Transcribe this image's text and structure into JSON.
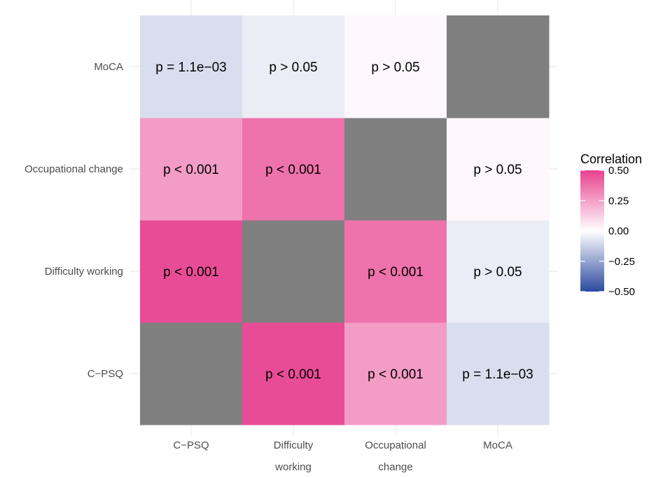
{
  "chart_data": {
    "type": "heatmap",
    "x_categories": [
      [
        "C−PSQ"
      ],
      [
        "Difficulty",
        "working"
      ],
      [
        "Occupational",
        "change"
      ],
      [
        "MoCA"
      ]
    ],
    "y_categories": [
      "C−PSQ",
      "Difficulty working",
      "Occupational change",
      "MoCA"
    ],
    "cells": [
      {
        "x": 0,
        "y": 0,
        "value": null,
        "label": ""
      },
      {
        "x": 1,
        "y": 0,
        "value": 0.47,
        "label": "p < 0.001"
      },
      {
        "x": 2,
        "y": 0,
        "value": 0.26,
        "label": "p < 0.001"
      },
      {
        "x": 3,
        "y": 0,
        "value": -0.09,
        "label": "p = 1.1e−03"
      },
      {
        "x": 0,
        "y": 1,
        "value": 0.47,
        "label": "p < 0.001"
      },
      {
        "x": 1,
        "y": 1,
        "value": null,
        "label": ""
      },
      {
        "x": 2,
        "y": 1,
        "value": 0.37,
        "label": "p < 0.001"
      },
      {
        "x": 3,
        "y": 1,
        "value": -0.05,
        "label": "p > 0.05"
      },
      {
        "x": 0,
        "y": 2,
        "value": 0.26,
        "label": "p < 0.001"
      },
      {
        "x": 1,
        "y": 2,
        "value": 0.37,
        "label": "p < 0.001"
      },
      {
        "x": 2,
        "y": 2,
        "value": null,
        "label": ""
      },
      {
        "x": 3,
        "y": 2,
        "value": 0.02,
        "label": "p > 0.05"
      },
      {
        "x": 0,
        "y": 3,
        "value": -0.09,
        "label": "p = 1.1e−03"
      },
      {
        "x": 1,
        "y": 3,
        "value": -0.05,
        "label": "p > 0.05"
      },
      {
        "x": 2,
        "y": 3,
        "value": 0.02,
        "label": "p > 0.05"
      },
      {
        "x": 3,
        "y": 3,
        "value": null,
        "label": ""
      }
    ],
    "diagonal_color": "#7f7f7f",
    "legend": {
      "title": "Correlation",
      "range": [
        -0.5,
        0.5
      ],
      "ticks": [
        "0.50",
        "0.25",
        "0.00",
        "−0.25",
        "−0.50"
      ],
      "colors": {
        "high": "#e8418f",
        "mid": "#ffffff",
        "low": "#2b4a9f"
      },
      "placement": "right"
    },
    "grid": true
  }
}
